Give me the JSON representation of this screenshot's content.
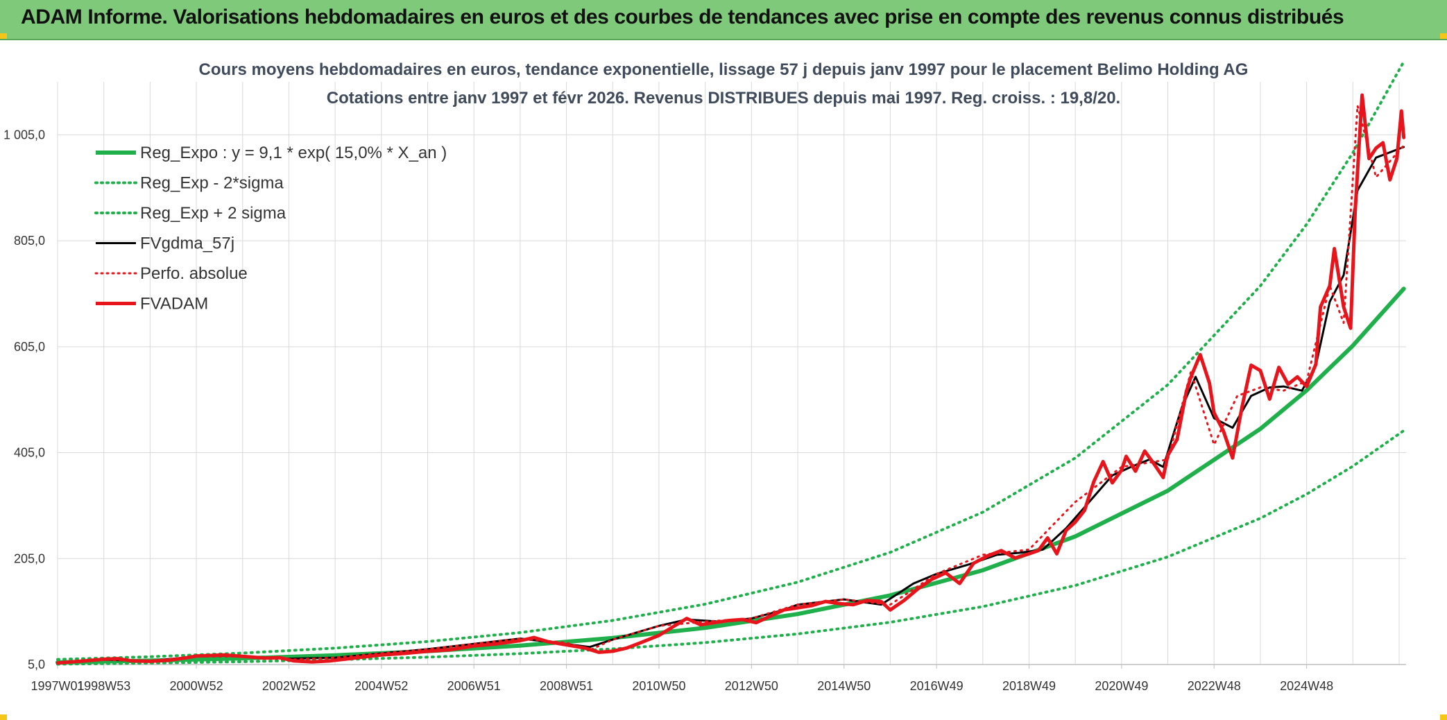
{
  "header": {
    "title": "ADAM Informe. Valorisations hebdomadaires en euros et des courbes de tendances avec prise en compte des revenus connus distribués"
  },
  "colors": {
    "banner_bg": "#7fc97a",
    "trend_green": "#1fb04c",
    "black": "#000000",
    "red": "#e8141b",
    "grid": "#d9d9d9",
    "corner_yellow": "#f5c518"
  },
  "chart_data": {
    "type": "line",
    "title": "Cours moyens hebdomadaires en euros, tendance exponentielle, lissage 57 j depuis janv 1997 pour le placement Belimo Holding AG",
    "subtitle": "Cotations entre janv 1997 et févr 2026. Revenus DISTRIBUES depuis mai 1997. Reg. croiss. : 19,8/20.",
    "xlabel": "",
    "ylabel": "",
    "x_ticks": [
      "1997W01",
      "1998W53",
      "2000W52",
      "2002W52",
      "2004W52",
      "2006W51",
      "2008W51",
      "2010W50",
      "2012W50",
      "2014W50",
      "2016W49",
      "2018W49",
      "2020W49",
      "2022W48",
      "2024W48"
    ],
    "y_ticks": [
      "5,0",
      "205,0",
      "405,0",
      "605,0",
      "805,0",
      "1 005,0"
    ],
    "xlim": [
      1997.0,
      2026.15
    ],
    "ylim": [
      5,
      1105
    ],
    "grid": true,
    "legend_position": "top-left",
    "series": [
      {
        "name": "Reg_Expo : y = 9,1 * exp( 15,0% *  X_an )",
        "color": "#1fb04c",
        "style": "solid",
        "width": 6,
        "x": [
          1997,
          1999,
          2001,
          2003,
          2005,
          2007,
          2009,
          2011,
          2013,
          2015,
          2017,
          2019,
          2021,
          2023,
          2024,
          2025,
          2026.1
        ],
        "y": [
          9.1,
          12.3,
          16.6,
          22.4,
          30.2,
          40.8,
          55.1,
          74.3,
          100.3,
          135.5,
          182.9,
          246.9,
          333.2,
          449.8,
          522.5,
          607.0,
          714.5
        ]
      },
      {
        "name": "Reg_Exp - 2*sigma",
        "color": "#1fb04c",
        "style": "dotted",
        "width": 4,
        "x": [
          1997,
          1999,
          2001,
          2003,
          2005,
          2007,
          2009,
          2011,
          2013,
          2015,
          2017,
          2019,
          2021,
          2023,
          2024,
          2025,
          2026.1
        ],
        "y": [
          5.7,
          7.7,
          10.4,
          14.0,
          18.9,
          25.5,
          34.4,
          46.4,
          62.7,
          84.7,
          114.3,
          154.3,
          208.3,
          281.1,
          326.6,
          379.4,
          446.6
        ]
      },
      {
        "name": "Reg_Exp + 2 sigma",
        "color": "#1fb04c",
        "style": "dotted",
        "width": 4,
        "x": [
          1997,
          1999,
          2001,
          2003,
          2005,
          2007,
          2009,
          2011,
          2013,
          2015,
          2017,
          2019,
          2021,
          2023,
          2024,
          2025,
          2026.1
        ],
        "y": [
          14.6,
          19.7,
          26.6,
          35.9,
          48.4,
          65.3,
          88.2,
          118.9,
          160.5,
          216.8,
          292.6,
          395.0,
          533.1,
          719.7,
          836.0,
          971.2,
          1143.2
        ]
      },
      {
        "name": "FVgdma_57j",
        "color": "#000000",
        "style": "solid",
        "width": 3,
        "x": [
          1997.0,
          1998.0,
          1999.0,
          2000.0,
          2000.8,
          2001.5,
          2002.0,
          2003.0,
          2004.0,
          2005.0,
          2006.0,
          2007.0,
          2007.6,
          2008.5,
          2009.0,
          2010.0,
          2010.6,
          2011.3,
          2012.0,
          2012.7,
          2013.0,
          2014.0,
          2014.8,
          2015.5,
          2016.0,
          2016.7,
          2017.3,
          2017.8,
          2018.3,
          2018.8,
          2019.3,
          2019.8,
          2020.2,
          2020.6,
          2020.9,
          2021.3,
          2021.6,
          2022.0,
          2022.4,
          2022.8,
          2023.2,
          2023.5,
          2023.9,
          2024.2,
          2024.5,
          2024.8,
          2025.1,
          2025.5,
          2025.8,
          2026.1
        ],
        "y": [
          8,
          14,
          12,
          20,
          22,
          18,
          16,
          18,
          26,
          34,
          44,
          54,
          48,
          38,
          52,
          78,
          90,
          86,
          92,
          108,
          118,
          128,
          118,
          158,
          176,
          194,
          212,
          216,
          222,
          262,
          312,
          362,
          378,
          392,
          378,
          490,
          548,
          470,
          452,
          512,
          528,
          530,
          522,
          570,
          690,
          740,
          900,
          962,
          972,
          982
        ]
      },
      {
        "name": "Perfo. absolue",
        "color": "#e8141b",
        "style": "dotted",
        "width": 3,
        "x": [
          1997.0,
          1998.0,
          1999.0,
          2000.0,
          2001.0,
          2002.0,
          2003.0,
          2004.0,
          2005.0,
          2006.0,
          2007.0,
          2008.0,
          2008.5,
          2009.0,
          2010.0,
          2011.0,
          2012.0,
          2013.0,
          2014.0,
          2015.0,
          2016.0,
          2017.0,
          2018.0,
          2019.0,
          2020.0,
          2021.0,
          2021.5,
          2022.0,
          2022.5,
          2023.0,
          2023.5,
          2024.0,
          2024.5,
          2024.8,
          2025.1,
          2025.5,
          2026.1
        ],
        "y": [
          8,
          14,
          12,
          20,
          20,
          14,
          18,
          26,
          34,
          44,
          54,
          46,
          32,
          52,
          78,
          86,
          92,
          118,
          128,
          118,
          176,
          212,
          222,
          312,
          378,
          392,
          558,
          420,
          512,
          528,
          522,
          540,
          720,
          650,
          1060,
          925,
          985
        ]
      },
      {
        "name": "FVADAM",
        "color": "#e8141b",
        "style": "solid",
        "width": 5,
        "x": [
          1997.0,
          1997.3,
          1997.6,
          1998.0,
          1998.3,
          1998.6,
          1999.0,
          1999.4,
          1999.8,
          2000.0,
          2000.3,
          2000.6,
          2000.9,
          2001.2,
          2001.5,
          2001.8,
          2002.1,
          2002.5,
          2002.9,
          2003.3,
          2003.7,
          2004.0,
          2004.5,
          2005.0,
          2005.5,
          2006.0,
          2006.5,
          2007.0,
          2007.3,
          2007.6,
          2008.0,
          2008.4,
          2008.7,
          2009.0,
          2009.3,
          2009.6,
          2010.0,
          2010.3,
          2010.6,
          2010.9,
          2011.2,
          2011.5,
          2011.8,
          2012.1,
          2012.4,
          2012.7,
          2013.0,
          2013.3,
          2013.6,
          2013.9,
          2014.2,
          2014.5,
          2014.8,
          2015.0,
          2015.3,
          2015.6,
          2015.9,
          2016.2,
          2016.5,
          2016.8,
          2017.1,
          2017.4,
          2017.7,
          2018.0,
          2018.2,
          2018.4,
          2018.6,
          2018.8,
          2019.0,
          2019.2,
          2019.4,
          2019.6,
          2019.8,
          2020.0,
          2020.1,
          2020.3,
          2020.5,
          2020.7,
          2020.9,
          2021.0,
          2021.2,
          2021.4,
          2021.5,
          2021.7,
          2021.9,
          2022.0,
          2022.2,
          2022.4,
          2022.6,
          2022.8,
          2023.0,
          2023.2,
          2023.4,
          2023.6,
          2023.8,
          2024.0,
          2024.2,
          2024.3,
          2024.5,
          2024.6,
          2024.8,
          2024.95,
          2025.05,
          2025.2,
          2025.35,
          2025.5,
          2025.65,
          2025.8,
          2025.95,
          2026.05,
          2026.1
        ],
        "y": [
          8,
          10,
          12,
          15,
          16,
          12,
          11,
          13,
          18,
          21,
          22,
          23,
          21,
          19,
          17,
          18,
          12,
          10,
          12,
          16,
          20,
          23,
          26,
          30,
          33,
          40,
          44,
          50,
          56,
          48,
          42,
          36,
          28,
          30,
          36,
          46,
          60,
          76,
          92,
          80,
          84,
          88,
          90,
          84,
          96,
          108,
          112,
          116,
          124,
          120,
          118,
          126,
          124,
          108,
          126,
          148,
          166,
          178,
          158,
          196,
          210,
          220,
          206,
          214,
          220,
          244,
          214,
          258,
          274,
          296,
          350,
          388,
          348,
          372,
          398,
          370,
          408,
          384,
          358,
          400,
          430,
          520,
          548,
          590,
          536,
          480,
          446,
          395,
          490,
          570,
          560,
          506,
          566,
          534,
          548,
          530,
          572,
          680,
          720,
          790,
          680,
          640,
          860,
          1080,
          960,
          980,
          990,
          920,
          960,
          1050,
          1000
        ]
      }
    ]
  }
}
